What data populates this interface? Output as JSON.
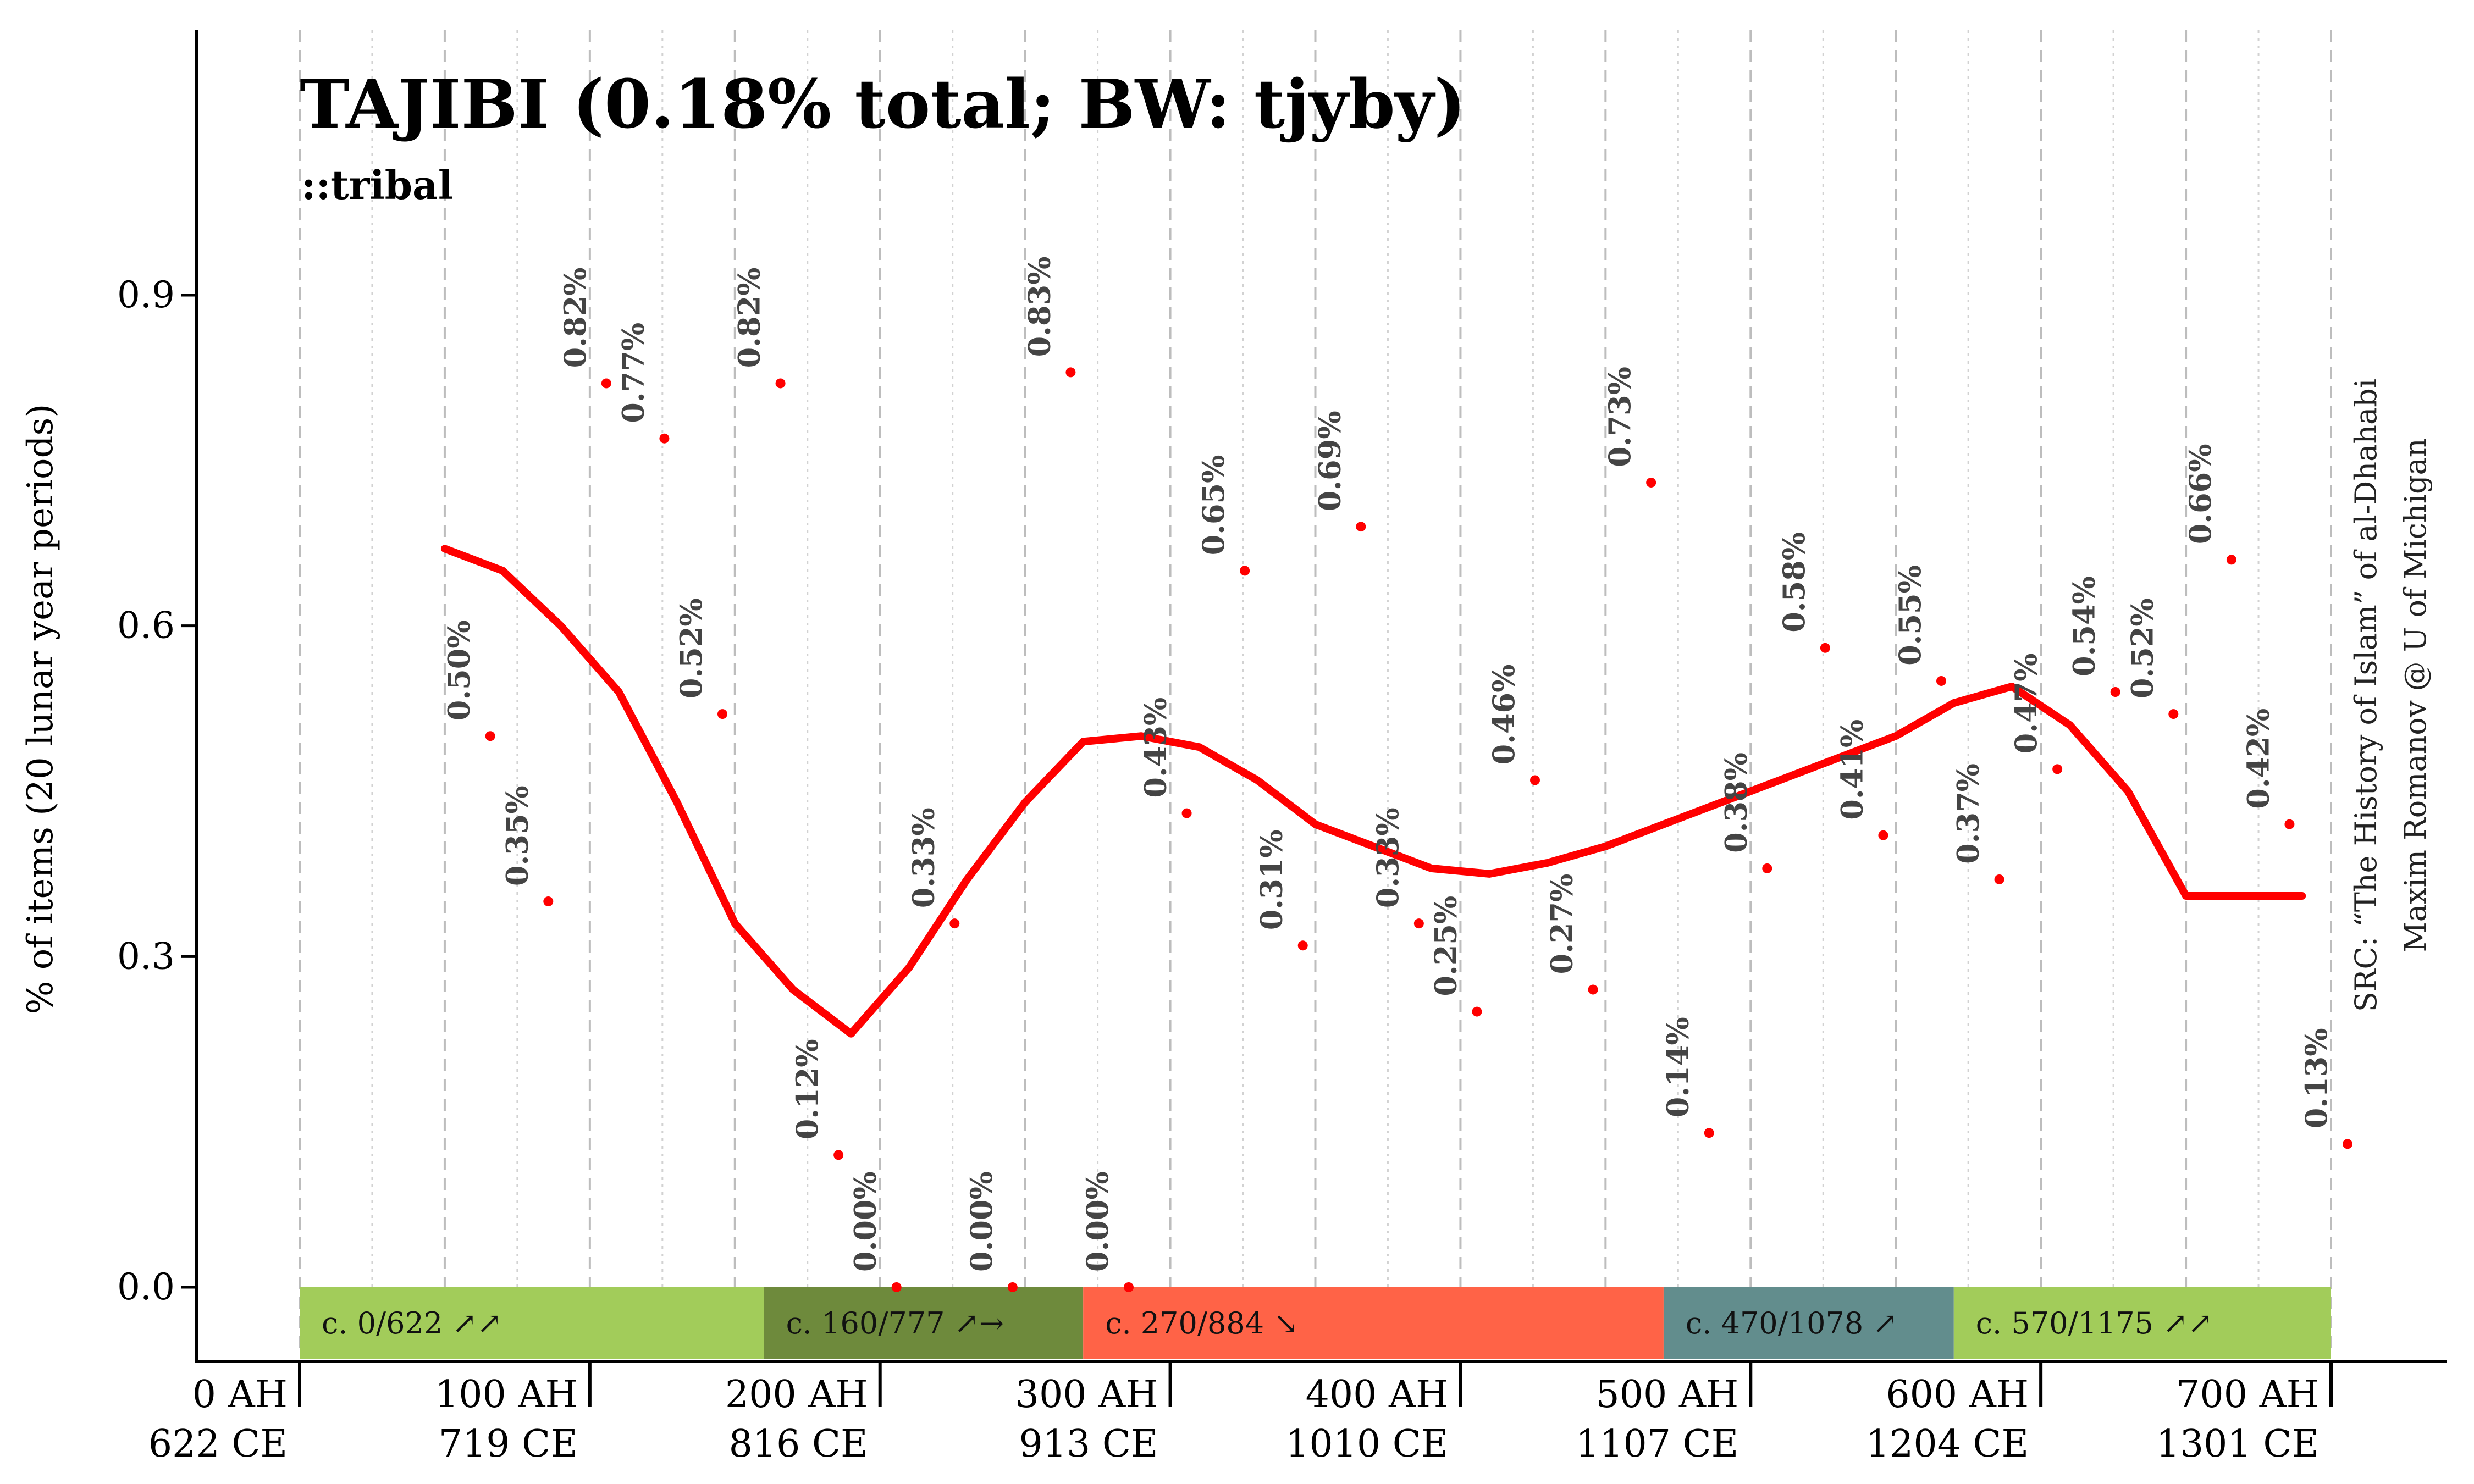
{
  "chart_data": {
    "type": "line",
    "title": "TAJIBI (0.18% total; BW: tjyby)",
    "subtitle": "::tribal",
    "ylabel": "% of items (20 lunar year periods)",
    "ylim": [
      -0.02,
      1.15
    ],
    "yticks": [
      "0.0",
      "0.3",
      "0.6",
      "0.9"
    ],
    "yticks_values": [
      0.0,
      0.3,
      0.6,
      0.9
    ],
    "xlim": [
      0,
      700
    ],
    "xticks": [
      {
        "ah": 0,
        "line1": "0 AH",
        "line2": "622 CE"
      },
      {
        "ah": 100,
        "line1": "100 AH",
        "line2": "719 CE"
      },
      {
        "ah": 200,
        "line1": "200 AH",
        "line2": "816 CE"
      },
      {
        "ah": 300,
        "line1": "300 AH",
        "line2": "913 CE"
      },
      {
        "ah": 400,
        "line1": "400 AH",
        "line2": "1010 CE"
      },
      {
        "ah": 500,
        "line1": "500 AH",
        "line2": "1107 CE"
      },
      {
        "ah": 600,
        "line1": "600 AH",
        "line2": "1204 CE"
      },
      {
        "ah": 700,
        "line1": "700 AH",
        "line2": "1301 CE"
      }
    ],
    "points": [
      {
        "x": 60,
        "y": 0.5,
        "label": "0.50%"
      },
      {
        "x": 80,
        "y": 0.35,
        "label": "0.35%"
      },
      {
        "x": 100,
        "y": 0.82,
        "label": "0.82%"
      },
      {
        "x": 120,
        "y": 0.77,
        "label": "0.77%"
      },
      {
        "x": 140,
        "y": 0.52,
        "label": "0.52%"
      },
      {
        "x": 160,
        "y": 0.82,
        "label": "0.82%"
      },
      {
        "x": 180,
        "y": 0.12,
        "label": "0.12%"
      },
      {
        "x": 200,
        "y": 0.0,
        "label": "0.00%"
      },
      {
        "x": 220,
        "y": 0.33,
        "label": "0.33%"
      },
      {
        "x": 240,
        "y": 0.0,
        "label": "0.00%"
      },
      {
        "x": 260,
        "y": 0.83,
        "label": "0.83%"
      },
      {
        "x": 280,
        "y": 0.0,
        "label": "0.00%"
      },
      {
        "x": 300,
        "y": 0.43,
        "label": "0.43%"
      },
      {
        "x": 320,
        "y": 0.65,
        "label": "0.65%"
      },
      {
        "x": 340,
        "y": 0.31,
        "label": "0.31%"
      },
      {
        "x": 360,
        "y": 0.69,
        "label": "0.69%"
      },
      {
        "x": 380,
        "y": 0.33,
        "label": "0.33%"
      },
      {
        "x": 400,
        "y": 0.25,
        "label": "0.25%"
      },
      {
        "x": 420,
        "y": 0.46,
        "label": "0.46%"
      },
      {
        "x": 440,
        "y": 0.27,
        "label": "0.27%"
      },
      {
        "x": 460,
        "y": 0.73,
        "label": "0.73%"
      },
      {
        "x": 480,
        "y": 0.14,
        "label": "0.14%"
      },
      {
        "x": 500,
        "y": 0.38,
        "label": "0.38%"
      },
      {
        "x": 520,
        "y": 0.58,
        "label": "0.58%"
      },
      {
        "x": 540,
        "y": 0.41,
        "label": "0.41%"
      },
      {
        "x": 560,
        "y": 0.55,
        "label": "0.55%"
      },
      {
        "x": 580,
        "y": 0.37,
        "label": "0.37%"
      },
      {
        "x": 600,
        "y": 0.47,
        "label": "0.47%"
      },
      {
        "x": 620,
        "y": 0.54,
        "label": "0.54%"
      },
      {
        "x": 640,
        "y": 0.52,
        "label": "0.52%"
      },
      {
        "x": 660,
        "y": 0.66,
        "label": "0.66%"
      },
      {
        "x": 680,
        "y": 0.42,
        "label": "0.42%"
      },
      {
        "x": 700,
        "y": 0.13,
        "label": "0.13%"
      }
    ],
    "trend": {
      "color": "#ff0000",
      "x": [
        50,
        70,
        90,
        110,
        130,
        150,
        170,
        190,
        210,
        230,
        250,
        270,
        290,
        310,
        330,
        350,
        370,
        390,
        410,
        430,
        450,
        470,
        490,
        510,
        530,
        550,
        570,
        590,
        610,
        630,
        650,
        670,
        690
      ],
      "y": [
        0.67,
        0.65,
        0.6,
        0.54,
        0.44,
        0.33,
        0.27,
        0.23,
        0.29,
        0.37,
        0.44,
        0.495,
        0.5,
        0.49,
        0.46,
        0.42,
        0.4,
        0.38,
        0.375,
        0.385,
        0.4,
        0.42,
        0.44,
        0.46,
        0.48,
        0.5,
        0.53,
        0.545,
        0.51,
        0.45,
        0.355,
        0.355,
        0.355
      ]
    },
    "periods": [
      {
        "label": "c. 0/622 ↗↗",
        "start": 0,
        "end": 160,
        "color": "#a2cc5a"
      },
      {
        "label": "c. 160/777 ↗→",
        "start": 160,
        "end": 270,
        "color": "#6e8a3c"
      },
      {
        "label": "c. 270/884 ↘",
        "start": 270,
        "end": 470,
        "color": "#ff6347"
      },
      {
        "label": "c. 470/1078 ↗",
        "start": 470,
        "end": 570,
        "color": "#628d8d"
      },
      {
        "label": "c. 570/1175 ↗↗",
        "start": 570,
        "end": 700,
        "color": "#a2cc5a"
      }
    ],
    "grid": true,
    "source_line1": "SRC: “The History of Islam” of al-Dhahabi",
    "source_line2": "Maxim Romanov @ U of Michigan"
  }
}
